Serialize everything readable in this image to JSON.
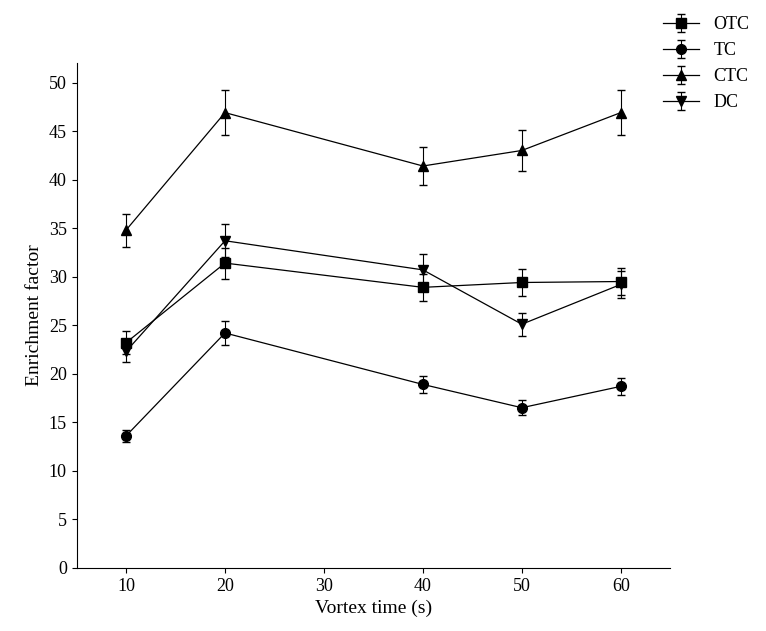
{
  "chart_data": {
    "type": "line",
    "x_label": "Vortex time (s)",
    "y_label": "Enrichment factor",
    "x": [
      10,
      20,
      40,
      50,
      60
    ],
    "series": [
      {
        "name": "OTC",
        "color": "#000000",
        "marker": "square",
        "values": [
          23.2,
          31.4,
          28.9,
          29.4,
          29.5
        ],
        "errors": [
          1.2,
          1.6,
          1.4,
          1.4,
          1.4
        ]
      },
      {
        "name": "TC",
        "color": "#000000",
        "marker": "circle",
        "values": [
          13.6,
          24.2,
          18.9,
          16.5,
          18.7
        ],
        "errors": [
          0.6,
          1.2,
          0.9,
          0.8,
          0.9
        ]
      },
      {
        "name": "CTC",
        "color": "#000000",
        "marker": "triangle_up",
        "values": [
          34.8,
          46.9,
          41.4,
          43.0,
          46.9
        ],
        "errors": [
          1.7,
          2.3,
          2.0,
          2.1,
          2.3
        ]
      },
      {
        "name": "DC",
        "color": "#000000",
        "marker": "triangle_down",
        "values": [
          22.3,
          33.7,
          30.7,
          25.1,
          29.2
        ],
        "errors": [
          1.1,
          1.7,
          1.6,
          1.2,
          1.4
        ]
      }
    ],
    "xlim": [
      5,
      65
    ],
    "xticks": [
      10,
      20,
      30,
      40,
      50,
      60
    ],
    "ylim": [
      0,
      52
    ],
    "yticks": [
      0,
      5,
      10,
      15,
      20,
      25,
      30,
      35,
      40,
      45,
      50
    ],
    "legend": "upper right",
    "grid": false
  }
}
